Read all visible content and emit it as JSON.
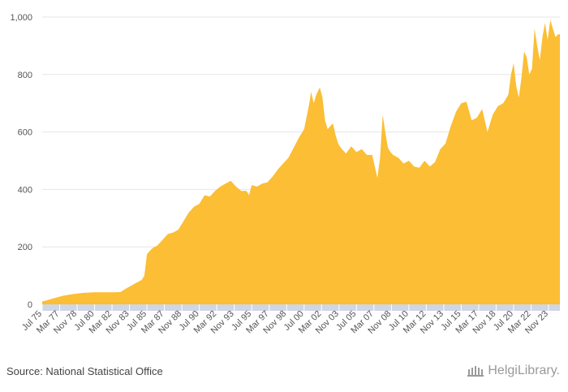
{
  "chart_data": {
    "type": "area",
    "title": "",
    "xlabel": "",
    "ylabel": "",
    "ylim": [
      0,
      1000
    ],
    "y_ticks": [
      0,
      200,
      400,
      600,
      800,
      1000
    ],
    "y_tick_labels": [
      "0",
      "200",
      "400",
      "600",
      "800",
      "1,000"
    ],
    "x_tick_labels": [
      "Jul 75",
      "Mar 77",
      "Nov 78",
      "Jul 80",
      "Mar 82",
      "Nov 83",
      "Jul 85",
      "Mar 87",
      "Nov 88",
      "Jul 90",
      "Mar 92",
      "Nov 93",
      "Jul 95",
      "Mar 97",
      "Nov 98",
      "Jul 00",
      "Mar 02",
      "Nov 03",
      "Jul 05",
      "Mar 07",
      "Nov 08",
      "Jul 10",
      "Mar 12",
      "Nov 13",
      "Jul 15",
      "Mar 17",
      "Nov 18",
      "Jul 20",
      "Mar 22",
      "Nov 23"
    ],
    "x_range": [
      "1975-07",
      "2024-12"
    ],
    "grid": true,
    "color": "#FBBE34",
    "series": [
      {
        "x": [
          "1975-07",
          "1976-01",
          "1976-07",
          "1977-01",
          "1977-07",
          "1978-01",
          "1978-07",
          "1979-01",
          "1979-07",
          "1980-01",
          "1980-07",
          "1981-01",
          "1981-07",
          "1982-01",
          "1982-07",
          "1983-01",
          "1983-07",
          "1984-01",
          "1984-07",
          "1985-01",
          "1985-04",
          "1985-07",
          "1985-10",
          "1986-01",
          "1986-07",
          "1987-01",
          "1987-07",
          "1988-01",
          "1988-07",
          "1989-01",
          "1989-07",
          "1990-01",
          "1990-07",
          "1991-01",
          "1991-07",
          "1992-01",
          "1992-07",
          "1993-01",
          "1993-07",
          "1994-01",
          "1994-07",
          "1995-01",
          "1995-04",
          "1995-07",
          "1996-01",
          "1996-07",
          "1997-01",
          "1997-07",
          "1998-01",
          "1998-07",
          "1999-01",
          "1999-07",
          "2000-01",
          "2000-07",
          "2001-01",
          "2001-03",
          "2001-06",
          "2001-09",
          "2002-01",
          "2002-04",
          "2002-07",
          "2002-10",
          "2003-01",
          "2003-04",
          "2003-07",
          "2003-10",
          "2004-01",
          "2004-07",
          "2005-01",
          "2005-07",
          "2006-01",
          "2006-07",
          "2007-01",
          "2007-04",
          "2007-07",
          "2007-10",
          "2008-01",
          "2008-04",
          "2008-07",
          "2008-10",
          "2009-01",
          "2009-07",
          "2010-01",
          "2010-07",
          "2011-01",
          "2011-07",
          "2012-01",
          "2012-07",
          "2013-01",
          "2013-07",
          "2014-01",
          "2014-07",
          "2015-01",
          "2015-07",
          "2016-01",
          "2016-07",
          "2017-01",
          "2017-07",
          "2018-01",
          "2018-07",
          "2019-01",
          "2019-07",
          "2020-01",
          "2020-04",
          "2020-07",
          "2020-10",
          "2021-01",
          "2021-04",
          "2021-07",
          "2021-10",
          "2022-01",
          "2022-04",
          "2022-07",
          "2022-10",
          "2023-01",
          "2023-04",
          "2023-07",
          "2023-10",
          "2024-01",
          "2024-04",
          "2024-07",
          "2024-10",
          "2024-12"
        ],
        "y": [
          10,
          15,
          20,
          25,
          30,
          33,
          36,
          38,
          40,
          41,
          42,
          42,
          42,
          42,
          42,
          43,
          55,
          65,
          75,
          85,
          100,
          175,
          185,
          195,
          205,
          225,
          245,
          250,
          260,
          290,
          320,
          340,
          350,
          380,
          375,
          395,
          410,
          420,
          430,
          410,
          395,
          395,
          380,
          415,
          410,
          420,
          425,
          445,
          470,
          490,
          510,
          545,
          580,
          610,
          700,
          740,
          700,
          730,
          755,
          720,
          640,
          610,
          620,
          630,
          590,
          560,
          545,
          525,
          550,
          530,
          540,
          520,
          520,
          480,
          440,
          510,
          660,
          600,
          545,
          530,
          520,
          510,
          490,
          500,
          480,
          475,
          500,
          480,
          495,
          540,
          560,
          620,
          670,
          700,
          705,
          640,
          650,
          680,
          600,
          660,
          690,
          700,
          730,
          800,
          840,
          760,
          720,
          790,
          880,
          860,
          800,
          820,
          960,
          900,
          850,
          930,
          980,
          920,
          990,
          960,
          930,
          940,
          940
        ]
      }
    ]
  },
  "footer": {
    "source": "Source: National Statistical Office",
    "logo": "HelgiLibrary."
  }
}
